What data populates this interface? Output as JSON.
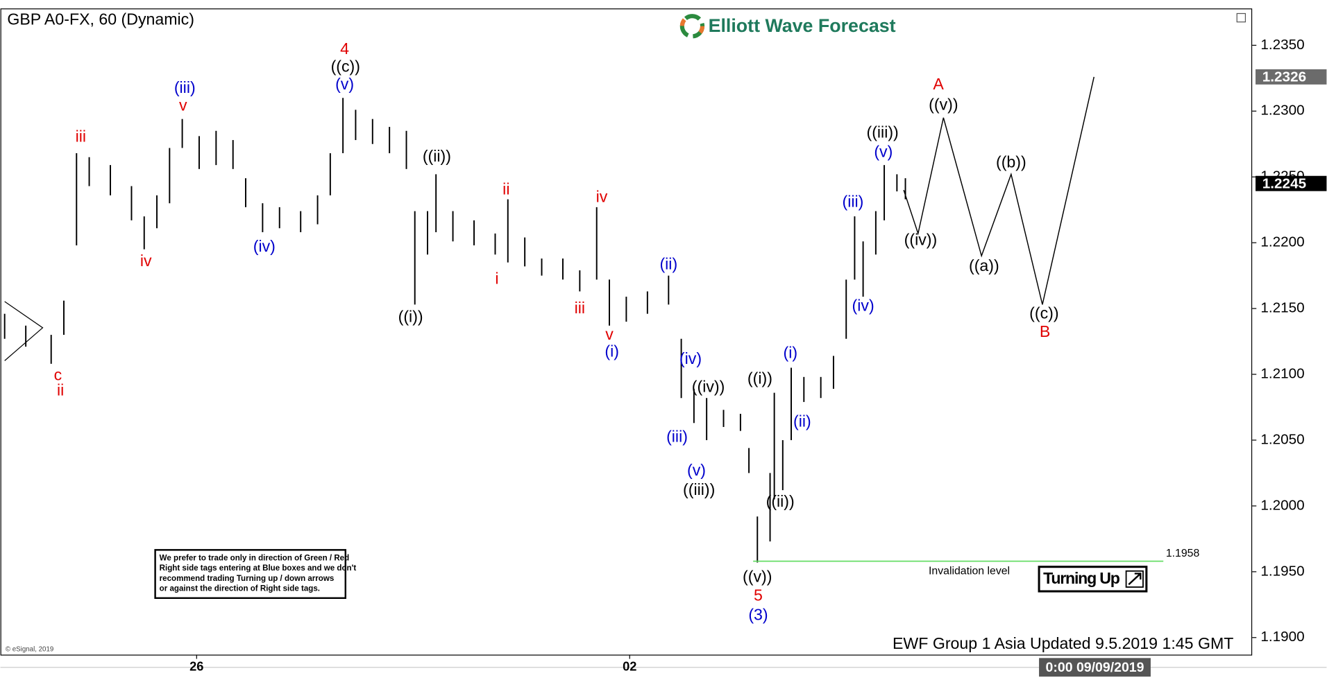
{
  "header": {
    "symbol": "GBP A0-FX, 60 (Dynamic)",
    "brand": "Elliott Wave Forecast"
  },
  "chart_data": {
    "type": "ohlc",
    "color": "#000000",
    "x": [
      1,
      6,
      12,
      15,
      18,
      21,
      26,
      31,
      34,
      37,
      40,
      43,
      47,
      51,
      55,
      58,
      62,
      66,
      71,
      75,
      78,
      81,
      84,
      88,
      92,
      96,
      98,
      101,
      103,
      107,
      112,
      117,
      120,
      124,
      128,
      133,
      137,
      141,
      144,
      148,
      153,
      158,
      161,
      164,
      167,
      171,
      175,
      177,
      179,
      182,
      183,
      185,
      187,
      190,
      194,
      197,
      200,
      202,
      204,
      207,
      209,
      212,
      214
    ],
    "high": [
      1.2146,
      1.2137,
      1.213,
      1.2156,
      1.2268,
      1.2265,
      1.2259,
      1.2243,
      1.222,
      1.2236,
      1.2272,
      1.2294,
      1.2281,
      1.2285,
      1.2278,
      1.2249,
      1.223,
      1.2227,
      1.2224,
      1.2236,
      1.2268,
      1.231,
      1.2301,
      1.2294,
      1.2288,
      1.2285,
      1.2224,
      1.2224,
      1.2252,
      1.2224,
      1.2217,
      1.2207,
      1.2233,
      1.2204,
      1.2188,
      1.2188,
      1.2179,
      1.2227,
      1.2172,
      1.2159,
      1.2163,
      1.2175,
      1.2127,
      1.2089,
      1.2082,
      1.2073,
      1.207,
      1.2044,
      1.1992,
      1.2025,
      1.2086,
      1.205,
      1.2105,
      1.2098,
      1.2098,
      1.2114,
      1.2172,
      1.222,
      1.2201,
      1.2224,
      1.2259,
      1.2252,
      1.2249
    ],
    "low": [
      1.2127,
      1.2121,
      1.2108,
      1.213,
      1.2198,
      1.2243,
      1.2236,
      1.2217,
      1.2195,
      1.2211,
      1.223,
      1.2272,
      1.2256,
      1.2259,
      1.2256,
      1.2227,
      1.2208,
      1.2211,
      1.2208,
      1.2214,
      1.2236,
      1.2268,
      1.2278,
      1.2275,
      1.2268,
      1.2256,
      1.2153,
      1.2191,
      1.2208,
      1.2201,
      1.2198,
      1.2191,
      1.2185,
      1.2182,
      1.2175,
      1.2172,
      1.2163,
      1.2172,
      1.2137,
      1.214,
      1.2146,
      1.2153,
      1.2082,
      1.2063,
      1.205,
      1.206,
      1.2057,
      1.2025,
      1.1957,
      1.1973,
      1.2005,
      1.2012,
      1.205,
      1.2079,
      1.2082,
      1.2089,
      1.2127,
      1.2172,
      1.2159,
      1.2191,
      1.2217,
      1.2239,
      1.2233
    ],
    "xlim": [
      0,
      296
    ],
    "xticks": [
      {
        "value": 46.4,
        "label": "26"
      },
      {
        "value": 148.8,
        "label": "02"
      }
    ],
    "ylim": [
      1.1887,
      1.2378
    ],
    "yticks": [
      {
        "value": 1.19,
        "label": "1.1900"
      },
      {
        "value": 1.195,
        "label": "1.1950"
      },
      {
        "value": 1.2,
        "label": "1.2000"
      },
      {
        "value": 1.205,
        "label": "1.2050"
      },
      {
        "value": 1.21,
        "label": "1.2100"
      },
      {
        "value": 1.215,
        "label": "1.2150"
      },
      {
        "value": 1.22,
        "label": "1.2200"
      },
      {
        "value": 1.225,
        "label": "1.2250"
      },
      {
        "value": 1.23,
        "label": "1.2300"
      },
      {
        "value": 1.235,
        "label": "1.2350"
      }
    ],
    "projection": {
      "x": [
        213.6,
        217,
        223,
        232,
        239,
        246.4,
        258.6
      ],
      "values": [
        1.224,
        1.2207,
        1.2295,
        1.219,
        1.2252,
        1.2153,
        1.2326
      ],
      "color": "#000000"
    },
    "invalidation": {
      "value": 1.1958,
      "x": [
        178,
        275
      ],
      "label": "Invalidation level",
      "color": "#66dd66"
    },
    "target_price": 1.2326,
    "last_price": 1.2245,
    "cursor_time": "0:00 09/09/2019",
    "wave_labels": [
      {
        "text": "c",
        "color": "#e00000"
      },
      {
        "text": "ii",
        "color": "#e00000"
      },
      {
        "text": "iii",
        "color": "#e00000"
      },
      {
        "text": "iv",
        "color": "#e00000"
      },
      {
        "text": "v",
        "color": "#e00000"
      },
      {
        "text": "(iii)",
        "color": "#0000cc"
      },
      {
        "text": "(iv)",
        "color": "#0000cc"
      },
      {
        "text": "4",
        "color": "#e00000"
      },
      {
        "text": "((c))",
        "color": "#000000"
      },
      {
        "text": "(v)",
        "color": "#0000cc"
      },
      {
        "text": "((i))",
        "color": "#000000"
      },
      {
        "text": "((ii))",
        "color": "#000000"
      },
      {
        "text": "ii",
        "color": "#e00000"
      },
      {
        "text": "i",
        "color": "#e00000"
      },
      {
        "text": "iii",
        "color": "#e00000"
      },
      {
        "text": "iv",
        "color": "#e00000"
      },
      {
        "text": "v",
        "color": "#e00000"
      },
      {
        "text": "(i)",
        "color": "#0000cc"
      },
      {
        "text": "(ii)",
        "color": "#0000cc"
      },
      {
        "text": "(iv)",
        "color": "#0000cc"
      },
      {
        "text": "((iv))",
        "color": "#000000"
      },
      {
        "text": "(iii)",
        "color": "#0000cc"
      },
      {
        "text": "(v)",
        "color": "#0000cc"
      },
      {
        "text": "((iii))",
        "color": "#000000"
      },
      {
        "text": "((i))",
        "color": "#000000"
      },
      {
        "text": "((ii))",
        "color": "#000000"
      },
      {
        "text": "((v))",
        "color": "#000000"
      },
      {
        "text": "5",
        "color": "#e00000"
      },
      {
        "text": "(3)",
        "color": "#0000cc"
      },
      {
        "text": "(i)",
        "color": "#0000cc"
      },
      {
        "text": "(ii)",
        "color": "#0000cc"
      },
      {
        "text": "(iii)",
        "color": "#0000cc"
      },
      {
        "text": "(iv)",
        "color": "#0000cc"
      },
      {
        "text": "((iii))",
        "color": "#000000"
      },
      {
        "text": "(v)",
        "color": "#0000cc"
      },
      {
        "text": "((iv))",
        "color": "#000000"
      },
      {
        "text": "A",
        "color": "#e00000"
      },
      {
        "text": "((v))",
        "color": "#000000"
      },
      {
        "text": "((a))",
        "color": "#000000"
      },
      {
        "text": "((b))",
        "color": "#000000"
      },
      {
        "text": "((c))",
        "color": "#000000"
      },
      {
        "text": "B",
        "color": "#e00000"
      }
    ],
    "footer": "EWF Group 1 Asia Updated 9.5.2019 1:45 GMT"
  },
  "notice": {
    "lines": [
      "We prefer to trade only in direction of Green / Red",
      "Right side tags entering at Blue boxes and we don't",
      "recommend trading Turning up / down arrows",
      "or against the direction of Right side tags."
    ]
  },
  "badge": "Turning Up",
  "copyright": "© eSignal, 2019"
}
